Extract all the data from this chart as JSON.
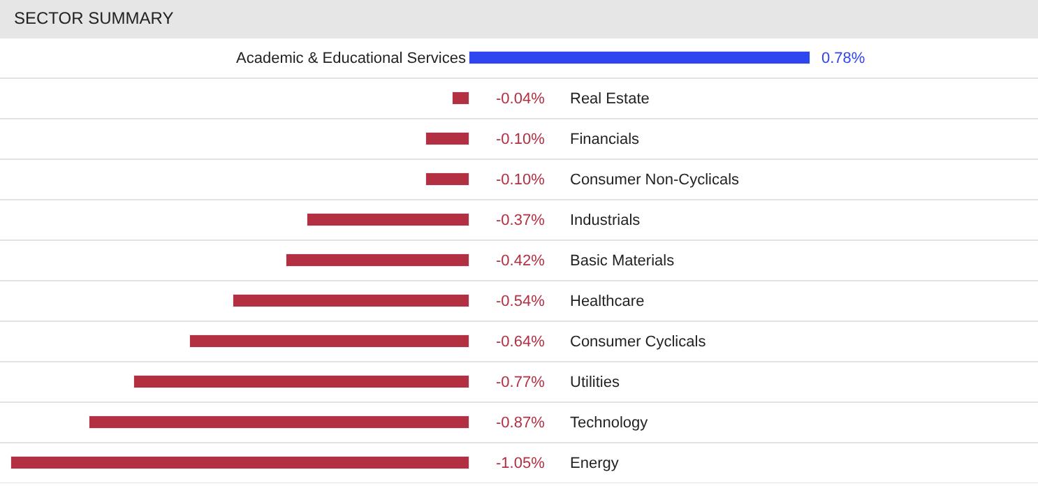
{
  "chart_data": {
    "type": "bar",
    "orientation": "horizontal",
    "title": "SECTOR SUMMARY",
    "categories": [
      "Academic & Educational Services",
      "Real Estate",
      "Financials",
      "Consumer Non-Cyclicals",
      "Industrials",
      "Basic Materials",
      "Healthcare",
      "Consumer Cyclicals",
      "Utilities",
      "Technology",
      "Energy"
    ],
    "values": [
      0.78,
      -0.04,
      -0.1,
      -0.1,
      -0.37,
      -0.42,
      -0.54,
      -0.64,
      -0.77,
      -0.87,
      -1.05
    ],
    "value_labels": [
      "0.78%",
      "-0.04%",
      "-0.10%",
      "-0.10%",
      "-0.37%",
      "-0.42%",
      "-0.54%",
      "-0.64%",
      "-0.77%",
      "-0.87%",
      "-1.05%"
    ],
    "colors": [
      "#2f45f0",
      "#b32f42",
      "#b32f42",
      "#b32f42",
      "#b32f42",
      "#b32f42",
      "#b32f42",
      "#b32f42",
      "#b32f42",
      "#b32f42",
      "#b32f42"
    ],
    "grid": "y",
    "legend": false
  }
}
